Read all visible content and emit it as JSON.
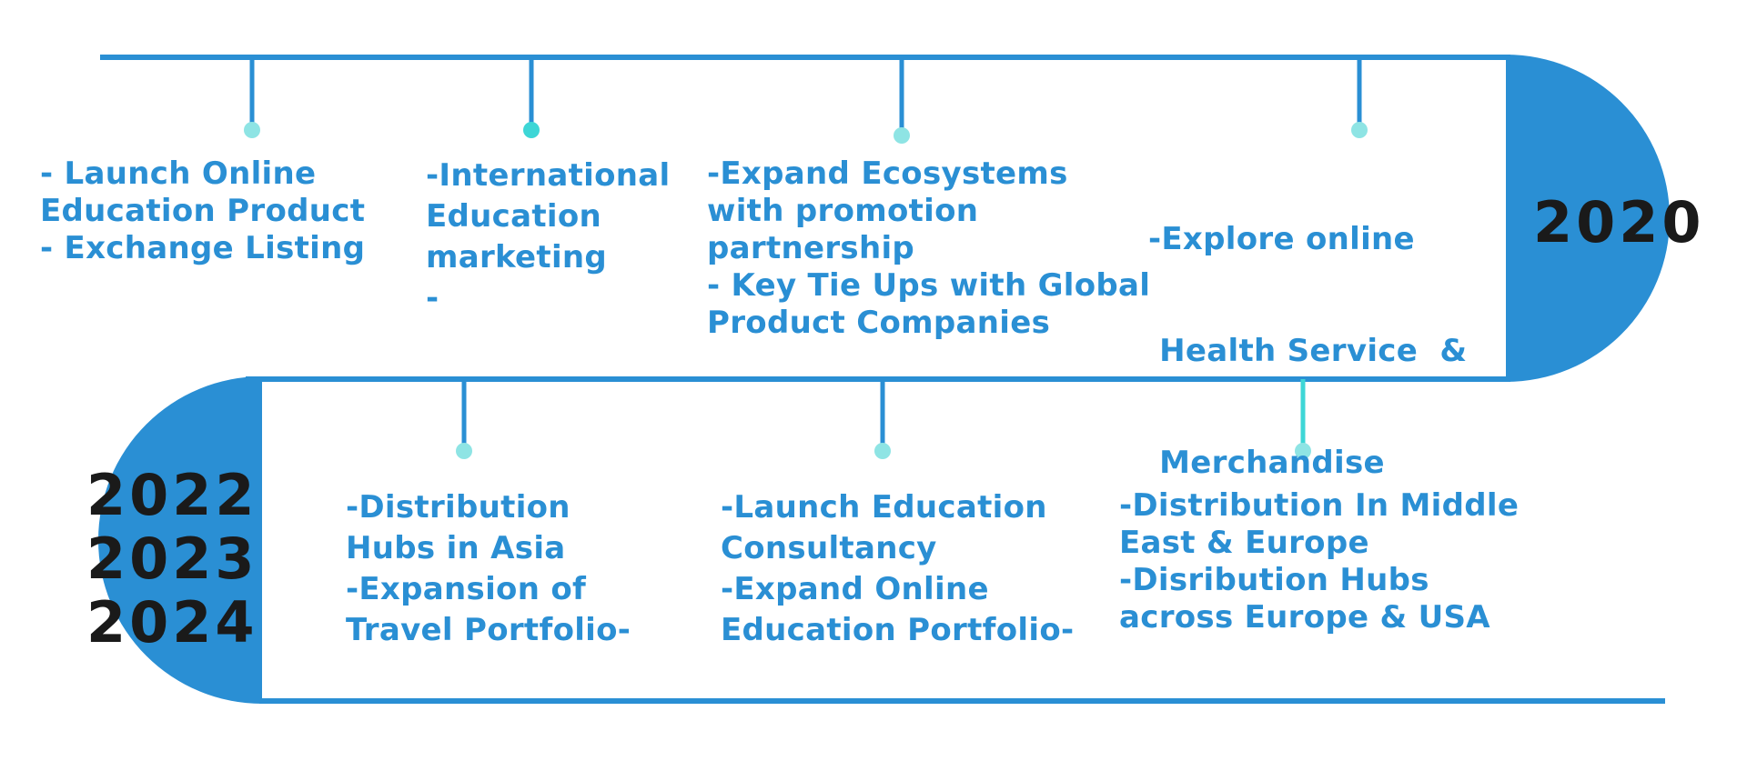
{
  "colors": {
    "primary": "#2a8fd4",
    "accent_teal": "#3dd6d6",
    "dot_light": "#8ee4e4",
    "year_text": "#1a1a1a",
    "background": "#ffffff"
  },
  "top_row": {
    "year_label": "2020",
    "items": [
      {
        "lines": [
          "- Launch Online",
          "Education Product",
          "- Exchange Listing"
        ]
      },
      {
        "lines": [
          "-International",
          "Education",
          "marketing",
          "-"
        ]
      },
      {
        "lines": [
          "-Expand Ecosystems",
          "with promotion",
          "partnership",
          "- Key Tie Ups with Global",
          "Product Companies"
        ]
      },
      {
        "lines": [
          "-Explore online",
          " Health Service  &",
          " Merchandise"
        ]
      }
    ]
  },
  "bottom_row": {
    "year_labels": [
      "2022",
      "2023",
      "2024"
    ],
    "items": [
      {
        "lines": [
          "-Distribution",
          "Hubs in Asia",
          "-Expansion of",
          "Travel Portfolio-"
        ]
      },
      {
        "lines": [
          "-Launch Education",
          "Consultancy",
          "-Expand Online",
          "Education Portfolio-"
        ]
      },
      {
        "lines": [
          "-Distribution In Middle",
          "East & Europe",
          "-Disribution Hubs",
          "across Europe & USA"
        ]
      }
    ]
  }
}
